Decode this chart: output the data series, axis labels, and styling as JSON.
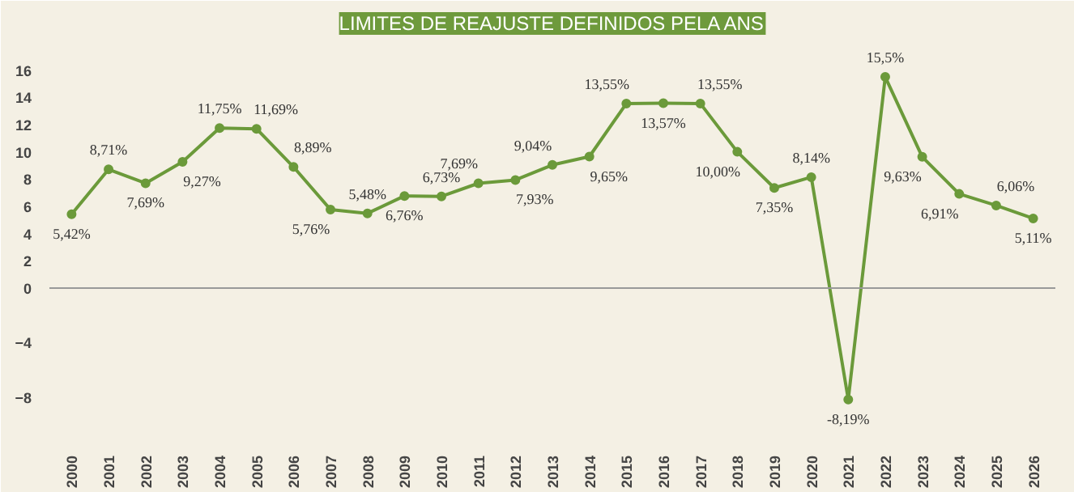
{
  "chart_data": {
    "type": "line",
    "title": "LIMITES DE REAJUSTE DEFINIDOS PELA ANS",
    "categories": [
      "2000",
      "2001",
      "2002",
      "2003",
      "2004",
      "2005",
      "2006",
      "2007",
      "2008",
      "2009",
      "2010",
      "2011",
      "2012",
      "2013",
      "2014",
      "2015",
      "2016",
      "2017",
      "2018",
      "2019",
      "2020",
      "2021",
      "2022",
      "2023",
      "2024",
      "2025",
      "2026"
    ],
    "series": [
      {
        "color": "#6b9a3a",
        "values": [
          5.42,
          8.71,
          7.69,
          9.27,
          11.75,
          11.69,
          8.89,
          5.76,
          5.48,
          6.76,
          6.73,
          7.69,
          7.93,
          9.04,
          9.65,
          13.55,
          13.57,
          13.55,
          10.0,
          7.35,
          8.14,
          -8.19,
          15.5,
          9.63,
          6.91,
          6.06,
          5.11
        ],
        "value_labels": [
          "5,42%",
          "8,71%",
          "7,69%",
          "9,27%",
          "11,75%",
          "11,69%",
          "8,89%",
          "5,76%",
          "5,48%",
          "6,76%",
          "6,73%",
          "7,69%",
          "7,93%",
          "9,04%",
          "9,65%",
          "13,55%",
          "13,57%",
          "13,55%",
          "10,00%",
          "7,35%",
          "8,14%",
          "-8,19%",
          "15,5%",
          "9,63%",
          "6,91%",
          "6,06%",
          "5,11%"
        ]
      }
    ],
    "ylim": [
      -11,
      18
    ],
    "yticks": [
      16,
      14,
      12,
      10,
      8,
      6,
      4,
      2,
      0,
      -4,
      -8
    ],
    "ref_lines": [
      {
        "axis": "y",
        "value": 0,
        "color": "#999999"
      }
    ],
    "marker": "circle",
    "line_style": "solid",
    "grid": false
  }
}
